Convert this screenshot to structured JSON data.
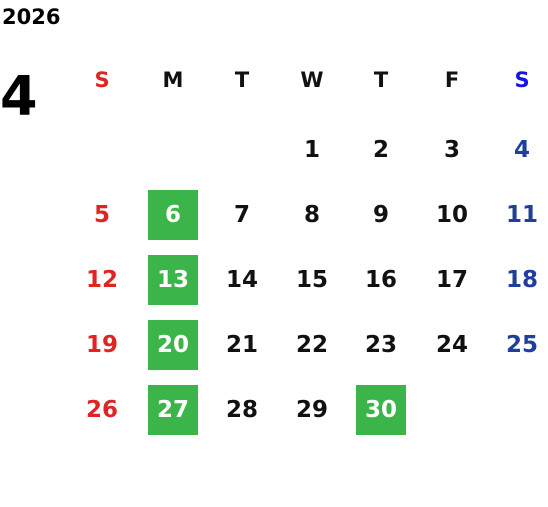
{
  "year": "2026",
  "month": "4",
  "weekdays": [
    "S",
    "M",
    "T",
    "W",
    "T",
    "F",
    "S"
  ],
  "weeks": [
    [
      null,
      null,
      null,
      1,
      2,
      3,
      4
    ],
    [
      5,
      6,
      7,
      8,
      9,
      10,
      11
    ],
    [
      12,
      13,
      14,
      15,
      16,
      17,
      18
    ],
    [
      19,
      20,
      21,
      22,
      23,
      24,
      25
    ],
    [
      26,
      27,
      28,
      29,
      30,
      null,
      null
    ]
  ],
  "highlighted": [
    6,
    13,
    20,
    27,
    30
  ],
  "highlight_color": "#3bb54a",
  "sunday_color": "#e02424",
  "saturday_color": "#1e3f9c",
  "saturday_header_color": "#1414e6"
}
